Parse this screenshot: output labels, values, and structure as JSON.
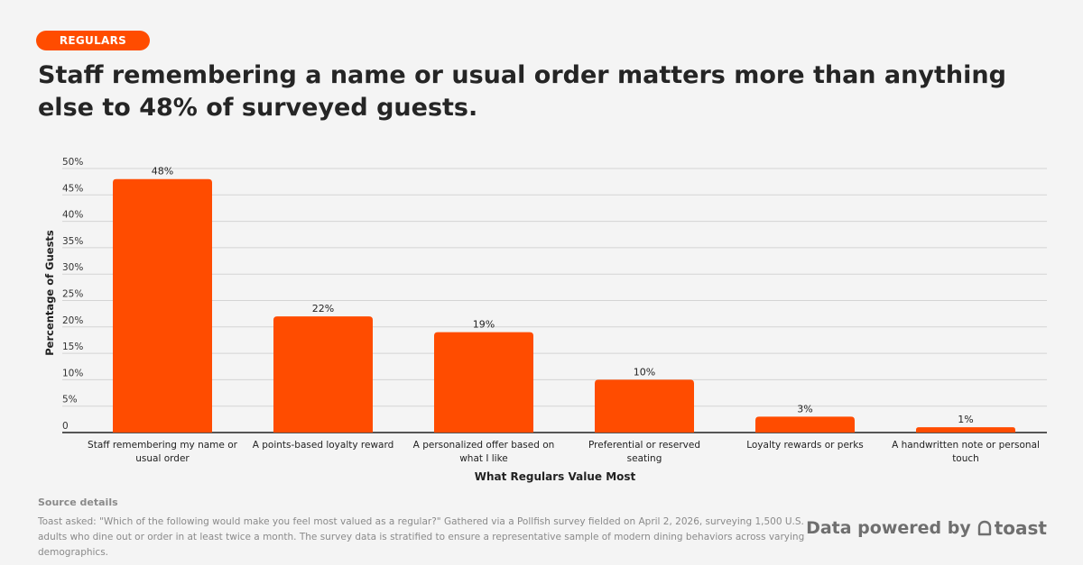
{
  "tag": "REGULARS",
  "headline": "Staff remembering a name or usual order matters more than anything else to 48% of surveyed guests.",
  "chart_data": {
    "type": "bar",
    "categories": [
      "Staff remembering my name or usual order",
      "A points-based loyalty reward",
      "A personalized offer based on what I like",
      "Preferential or reserved seating",
      "Loyalty rewards or perks",
      "A handwritten note or personal touch"
    ],
    "values": [
      48,
      22,
      19,
      10,
      3,
      1
    ],
    "data_labels": [
      "48%",
      "22%",
      "19%",
      "10%",
      "3%",
      "1%"
    ],
    "ylim": [
      0,
      50
    ],
    "yticks": [
      0,
      5,
      10,
      15,
      20,
      25,
      30,
      35,
      40,
      45,
      50
    ],
    "ytick_labels": [
      "0",
      "5%",
      "10%",
      "15%",
      "20%",
      "25%",
      "30%",
      "35%",
      "40%",
      "45%",
      "50%"
    ],
    "xlabel": "What Regulars Value Most",
    "ylabel": "Percentage of Guests",
    "bar_color": "#ff4c00",
    "grid": true,
    "legend": "none"
  },
  "source": {
    "title": "Source details",
    "text": "Toast asked: \"Which of the following would make you feel most valued as a regular?\" Gathered via a Pollfish survey fielded on April 2, 2026, surveying 1,500 U.S. adults who dine out or order in at least twice a month. The survey data is stratified to ensure a representative sample of modern dining behaviors across varying demographics."
  },
  "brand": {
    "prefix": "Data powered by",
    "logo_text": "toast",
    "logo_icon": "toast-slice-icon"
  },
  "colors": {
    "accent": "#ff4c00",
    "background": "#f4f4f4",
    "text": "#252525",
    "muted": "#8a8a8a"
  }
}
